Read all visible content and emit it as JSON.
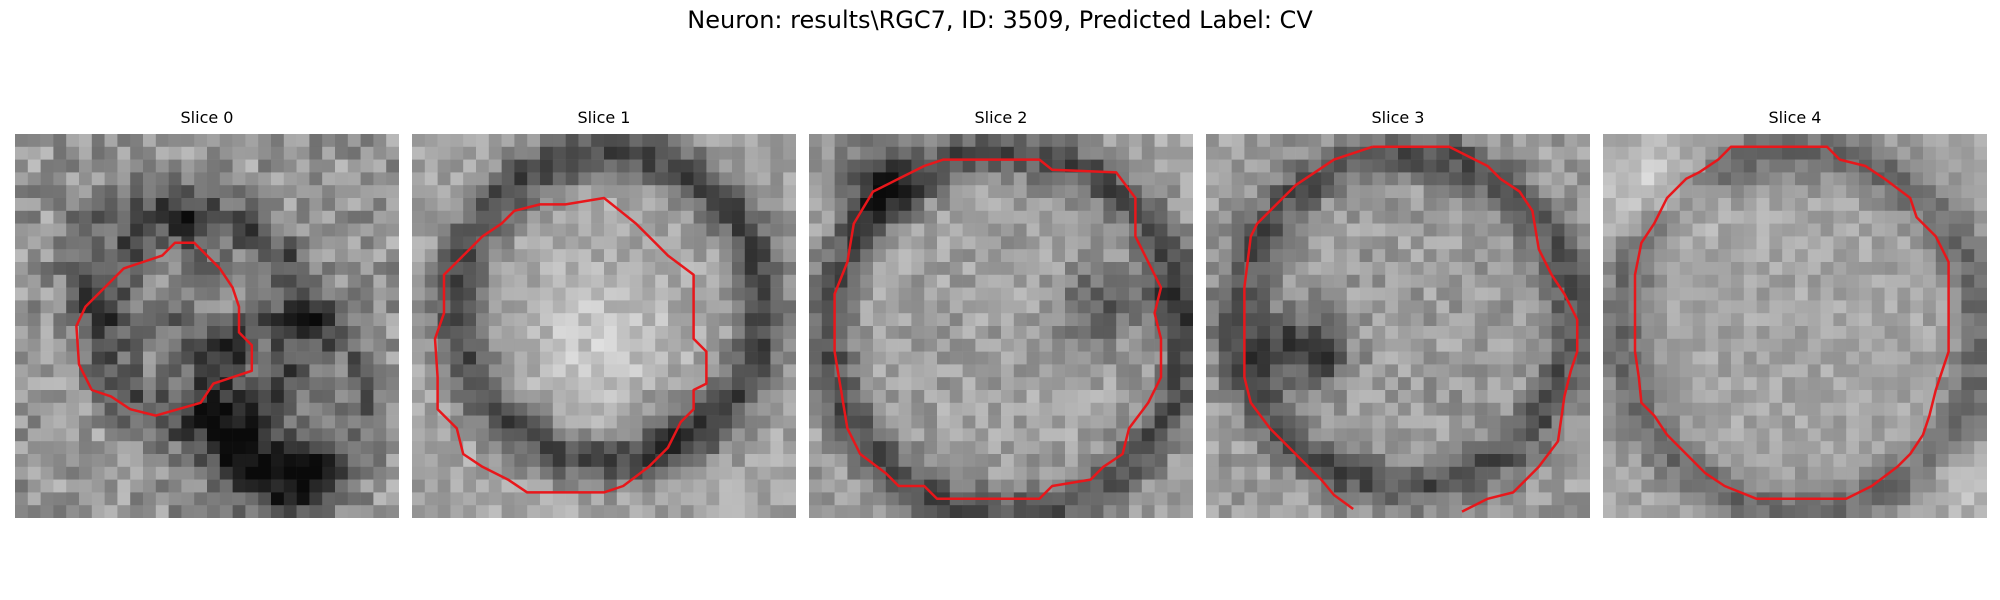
{
  "figure": {
    "title": "Neuron: results\\RGC7, ID: 3509, Predicted Label: CV"
  },
  "panels": [
    {
      "title": "Slice 0",
      "contour_color": "#e8171b"
    },
    {
      "title": "Slice 1",
      "contour_color": "#e8171b"
    },
    {
      "title": "Slice 2",
      "contour_color": "#e8171b"
    },
    {
      "title": "Slice 3",
      "contour_color": "#e8171b"
    },
    {
      "title": "Slice 4",
      "contour_color": "#e8171b"
    }
  ],
  "colormap": "grayscale"
}
